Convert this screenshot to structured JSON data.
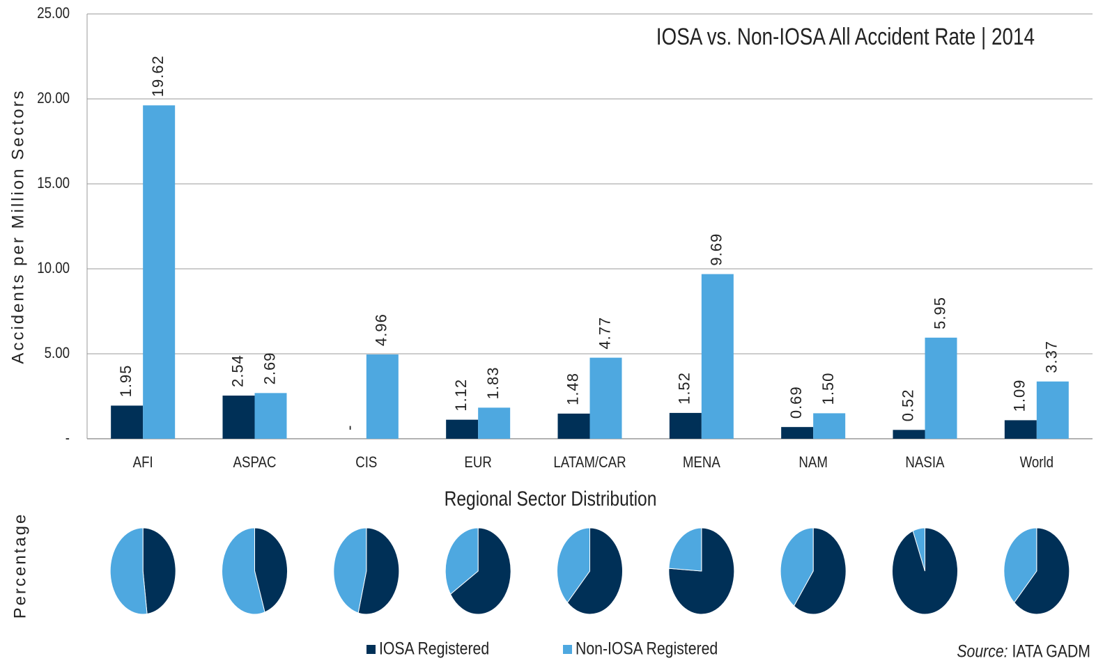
{
  "chart_data": [
    {
      "type": "bar",
      "title": "IOSA vs. Non-IOSA All Accident Rate | 2014",
      "y_label": "Accidents per Million Sectors",
      "categories": [
        "AFI",
        "ASPAC",
        "CIS",
        "EUR",
        "LATAM/CAR",
        "MENA",
        "NAM",
        "NASIA",
        "World"
      ],
      "series": [
        {
          "name": "IOSA Registered",
          "color": "#003057",
          "label_color": "#1a3558",
          "values": [
            1.95,
            2.54,
            0,
            1.12,
            1.48,
            1.52,
            0.69,
            0.52,
            1.09
          ],
          "value_labels": [
            "1.95",
            "2.54",
            "-",
            "1.12",
            "1.48",
            "1.52",
            "0.69",
            "0.52",
            "1.09"
          ]
        },
        {
          "name": "Non-IOSA Registered",
          "color": "#4ea8e0",
          "label_color": "#2e8fd0",
          "values": [
            19.62,
            2.69,
            4.96,
            1.83,
            4.77,
            9.69,
            1.5,
            5.95,
            3.37
          ],
          "value_labels": [
            "19.62",
            "2.69",
            "4.96",
            "1.83",
            "4.77",
            "9.69",
            "1.50",
            "5.95",
            "3.37"
          ]
        }
      ],
      "ylim": [
        0,
        25
      ],
      "yticks": [
        {
          "value": 0,
          "label": "-"
        },
        {
          "value": 5,
          "label": "5.00"
        },
        {
          "value": 10,
          "label": "10.00"
        },
        {
          "value": 15,
          "label": "15.00"
        },
        {
          "value": 20,
          "label": "20.00"
        },
        {
          "value": 25,
          "label": "25.00"
        }
      ],
      "grid": true
    },
    {
      "type": "pie",
      "title": "Regional Sector Distribution",
      "y_label": "Percentage",
      "series": [
        {
          "color": "#003057",
          "values": [
            48,
            45,
            54,
            66,
            62,
            76,
            60,
            94,
            62
          ]
        },
        {
          "color": "#4ea8e0",
          "values": [
            52,
            55,
            46,
            34,
            38,
            24,
            40,
            6,
            38
          ]
        }
      ]
    }
  ],
  "source_label": "Source:",
  "source": "IATA GADM"
}
